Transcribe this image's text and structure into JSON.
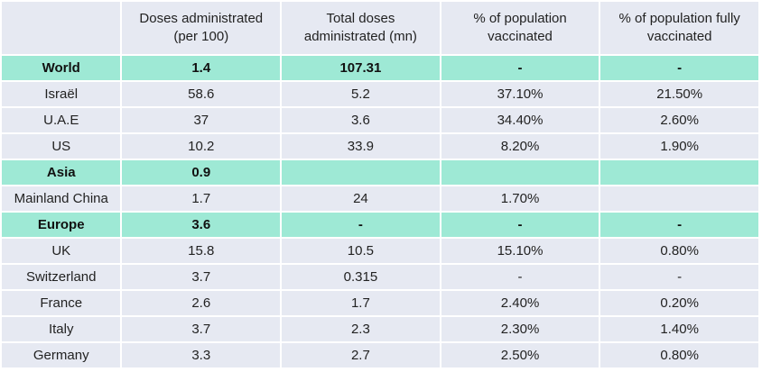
{
  "chart_data": {
    "type": "table",
    "columns": [
      "",
      "Doses administrated (per 100)",
      "Total doses administrated (mn)",
      "% of population vaccinated",
      "% of population fully vaccinated"
    ],
    "rows": [
      {
        "cells": [
          "World",
          "1.4",
          "107.31",
          "-",
          "-"
        ],
        "highlight": true
      },
      {
        "cells": [
          "Israël",
          "58.6",
          "5.2",
          "37.10%",
          "21.50%"
        ],
        "highlight": false
      },
      {
        "cells": [
          "U.A.E",
          "37",
          "3.6",
          "34.40%",
          "2.60%"
        ],
        "highlight": false
      },
      {
        "cells": [
          "US",
          "10.2",
          "33.9",
          "8.20%",
          "1.90%"
        ],
        "highlight": false
      },
      {
        "cells": [
          "Asia",
          "0.9",
          "",
          "",
          ""
        ],
        "highlight": true
      },
      {
        "cells": [
          "Mainland China",
          "1.7",
          "24",
          "1.70%",
          ""
        ],
        "highlight": false
      },
      {
        "cells": [
          "Europe",
          "3.6",
          "-",
          "-",
          "-"
        ],
        "highlight": true
      },
      {
        "cells": [
          "UK",
          "15.8",
          "10.5",
          "15.10%",
          "0.80%"
        ],
        "highlight": false
      },
      {
        "cells": [
          "Switzerland",
          "3.7",
          "0.315",
          "-",
          "-"
        ],
        "highlight": false
      },
      {
        "cells": [
          "France",
          "2.6",
          "1.7",
          "2.40%",
          "0.20%"
        ],
        "highlight": false
      },
      {
        "cells": [
          "Italy",
          "3.7",
          "2.3",
          "2.30%",
          "1.40%"
        ],
        "highlight": false
      },
      {
        "cells": [
          "Germany",
          "3.3",
          "2.7",
          "2.50%",
          "0.80%"
        ],
        "highlight": false
      }
    ],
    "colors": {
      "header_bg": "#e6e9f2",
      "row_bg": "#e6e9f2",
      "highlight_bg": "#9ee9d5"
    }
  }
}
